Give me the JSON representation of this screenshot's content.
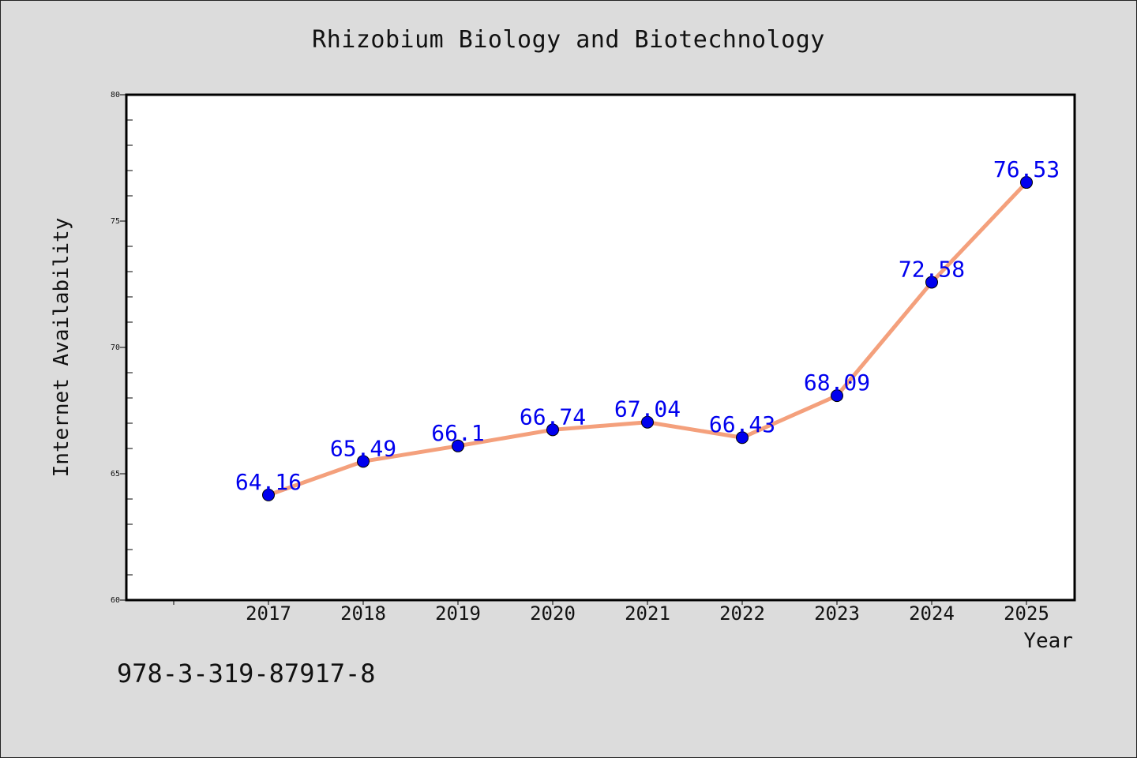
{
  "chart_data": {
    "type": "line",
    "title": "Rhizobium Biology and Biotechnology",
    "xlabel": "Year",
    "ylabel": "Internet Availability",
    "categories": [
      "2017",
      "2018",
      "2019",
      "2020",
      "2021",
      "2022",
      "2023",
      "2024",
      "2025"
    ],
    "series": [
      {
        "values": [
          64.16,
          65.49,
          66.1,
          66.74,
          67.04,
          66.43,
          68.09,
          72.58,
          76.53
        ],
        "labels": [
          "64.16",
          "65.49",
          "66.1",
          "66.74",
          "67.04",
          "66.43",
          "68.09",
          "72.58",
          "76.53"
        ],
        "line_color": "#f4a07c",
        "marker_color": "#0000ee"
      }
    ],
    "ylim": [
      60,
      80
    ],
    "yticks": [
      "60",
      "65",
      "70",
      "75",
      "80"
    ],
    "grid": false,
    "legend": "none",
    "label_color": "#0000ee"
  },
  "footer": {
    "code": "978-3-319-87917-8"
  },
  "colors": {
    "background": "#dcdcdc",
    "plot_background": "#ffffff"
  }
}
